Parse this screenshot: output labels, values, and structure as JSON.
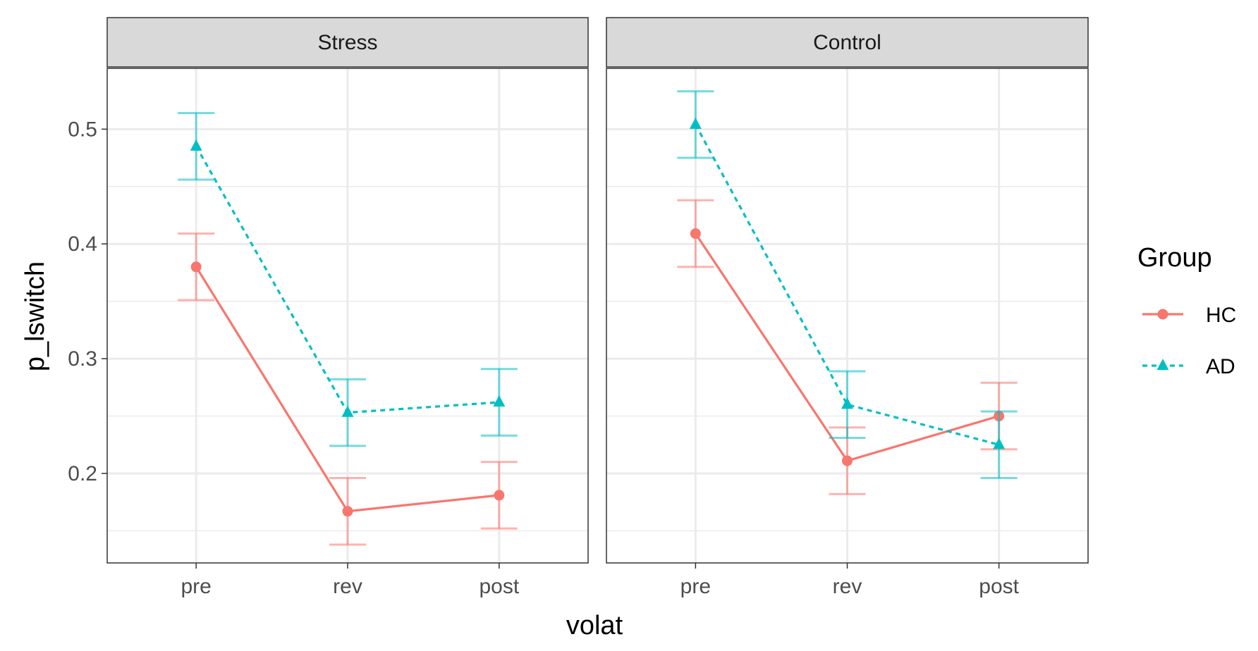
{
  "chart_data": {
    "type": "line",
    "xlabel": "volat",
    "ylabel": "p_lswitch",
    "categories": [
      "pre",
      "rev",
      "post"
    ],
    "ylim": [
      0.122,
      0.553
    ],
    "yticks": [
      0.2,
      0.3,
      0.4,
      0.5
    ],
    "ytick_labels": [
      "0.2",
      "0.3",
      "0.4",
      "0.5"
    ],
    "grid": true,
    "legend": {
      "title": "Group",
      "position": "right",
      "entries": [
        "HC",
        "AD"
      ]
    },
    "colors": {
      "HC": "#F8766D",
      "AD": "#00BFC4"
    },
    "panels": [
      {
        "title": "Stress",
        "series": [
          {
            "name": "HC",
            "values": [
              0.38,
              0.167,
              0.181
            ],
            "err_low": [
              0.351,
              0.138,
              0.152
            ],
            "err_high": [
              0.409,
              0.196,
              0.21
            ]
          },
          {
            "name": "AD",
            "values": [
              0.485,
              0.253,
              0.262
            ],
            "err_low": [
              0.456,
              0.224,
              0.233
            ],
            "err_high": [
              0.514,
              0.282,
              0.291
            ]
          }
        ]
      },
      {
        "title": "Control",
        "series": [
          {
            "name": "HC",
            "values": [
              0.409,
              0.211,
              0.25
            ],
            "err_low": [
              0.38,
              0.182,
              0.221
            ],
            "err_high": [
              0.438,
              0.24,
              0.279
            ]
          },
          {
            "name": "AD",
            "values": [
              0.504,
              0.26,
              0.225
            ],
            "err_low": [
              0.475,
              0.231,
              0.196
            ],
            "err_high": [
              0.533,
              0.289,
              0.254
            ]
          }
        ]
      }
    ]
  }
}
